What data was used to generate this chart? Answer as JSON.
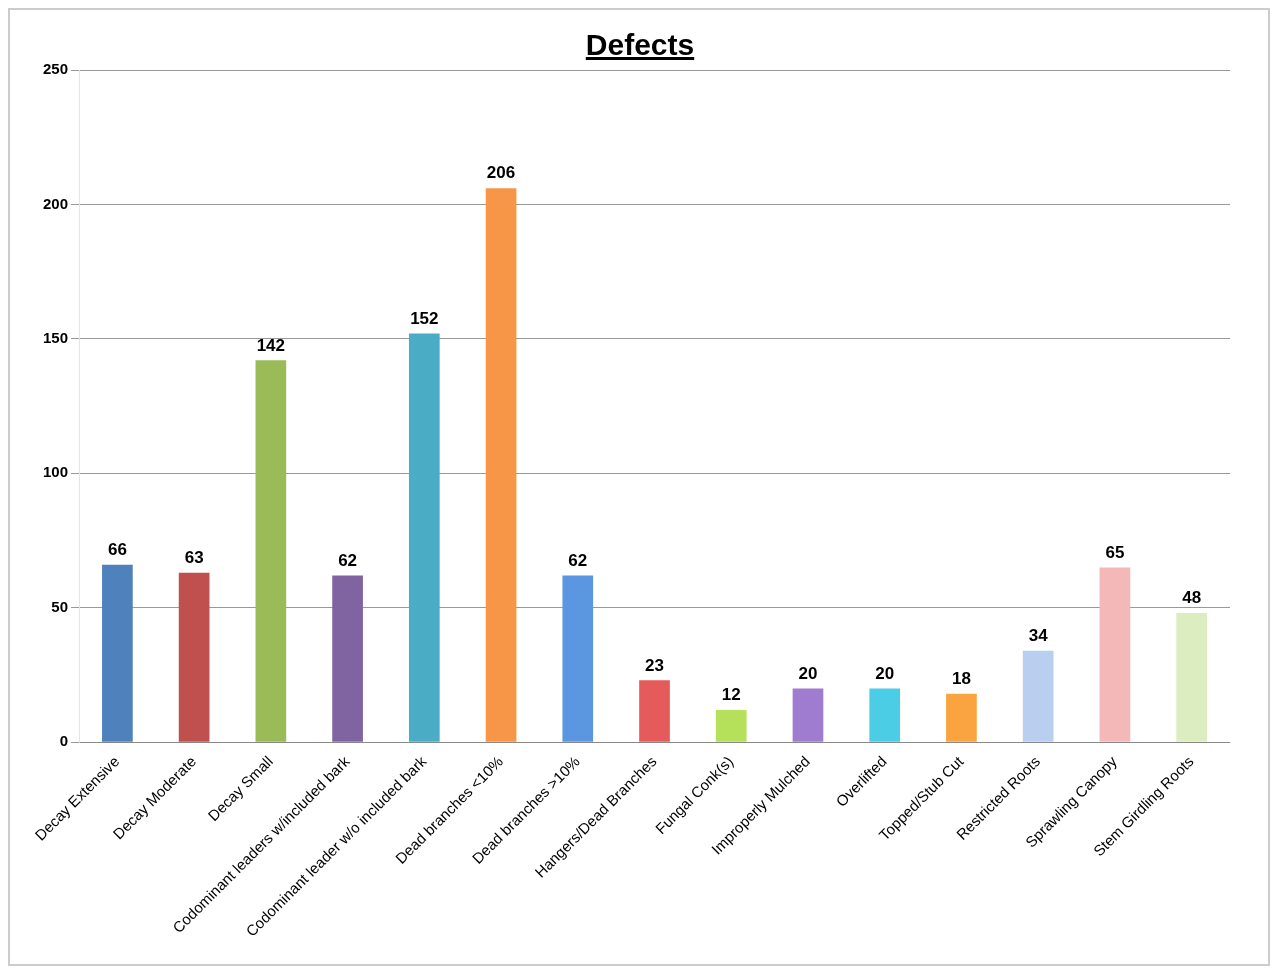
{
  "chart_data": {
    "type": "bar",
    "title": "Defects",
    "categories": [
      "Decay Extensive",
      "Decay Moderate",
      "Decay Small",
      "Codominant leaders w/included bark",
      "Codominant leader w/o included bark",
      "Dead branches <10%",
      "Dead branches >10%",
      "Hangers/Dead Branches",
      "Fungal Conk(s)",
      "Improperly Mulched",
      "Overlifted",
      "Topped/Stub Cut",
      "Restricted Roots",
      "Sprawling Canopy",
      "Stem Girdling Roots"
    ],
    "values": [
      66,
      63,
      142,
      62,
      152,
      206,
      62,
      23,
      12,
      20,
      20,
      18,
      34,
      65,
      48
    ],
    "colors": [
      "#4f81bd",
      "#c0504d",
      "#9bbb59",
      "#8064a2",
      "#4bacc6",
      "#f79646",
      "#5b96e0",
      "#e55a5a",
      "#b5e05a",
      "#a07cd0",
      "#4ccde6",
      "#f9a43f",
      "#b8cff0",
      "#f4b8b8",
      "#dceec0"
    ],
    "ylim": [
      0,
      250
    ],
    "yticks": [
      0,
      50,
      100,
      150,
      200,
      250
    ],
    "grid": "y",
    "data_labels": true
  }
}
